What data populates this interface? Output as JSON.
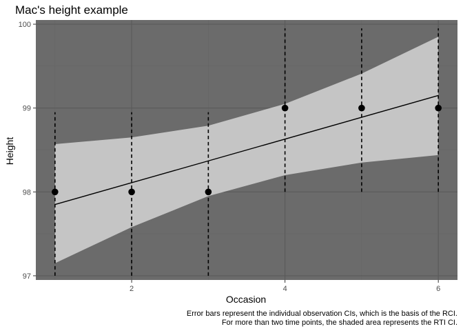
{
  "chart_data": {
    "type": "line",
    "title": "Mac's height example",
    "xlabel": "Occasion",
    "ylabel": "Height",
    "caption_lines": [
      "Error bars represent the individual observation CIs, which is the basis of the RCI.",
      "For more than two time points, the shaded area represents the RTI CI."
    ],
    "xlim": [
      0.75,
      6.25
    ],
    "ylim": [
      96.95,
      100.05
    ],
    "x_ticks": [
      2,
      4,
      6
    ],
    "x_minor_ticks": [
      1,
      3,
      5
    ],
    "y_ticks": [
      97,
      98,
      99,
      100
    ],
    "x": [
      1,
      2,
      3,
      4,
      5,
      6
    ],
    "observed": [
      98,
      98,
      98,
      99,
      99,
      99
    ],
    "error_bars": {
      "lower": [
        97.0,
        97.0,
        97.0,
        98.0,
        98.0,
        98.0
      ],
      "upper": [
        98.95,
        98.95,
        98.95,
        99.95,
        99.95,
        99.95
      ]
    },
    "trend_line": {
      "x": [
        1,
        6
      ],
      "y": [
        97.85,
        99.15
      ]
    },
    "rti_band": {
      "x": [
        1,
        2,
        3,
        4,
        5,
        6
      ],
      "lower": [
        97.15,
        97.58,
        97.95,
        98.2,
        98.35,
        98.44
      ],
      "upper": [
        98.57,
        98.65,
        98.79,
        99.05,
        99.41,
        99.85
      ]
    },
    "grid": true,
    "colors": {
      "panel": "#6b6b6b",
      "grid_major": "#5a5a5a",
      "grid_minor": "#646464",
      "band": "#c5c5c5",
      "points": "#000000",
      "line": "#000000"
    }
  }
}
